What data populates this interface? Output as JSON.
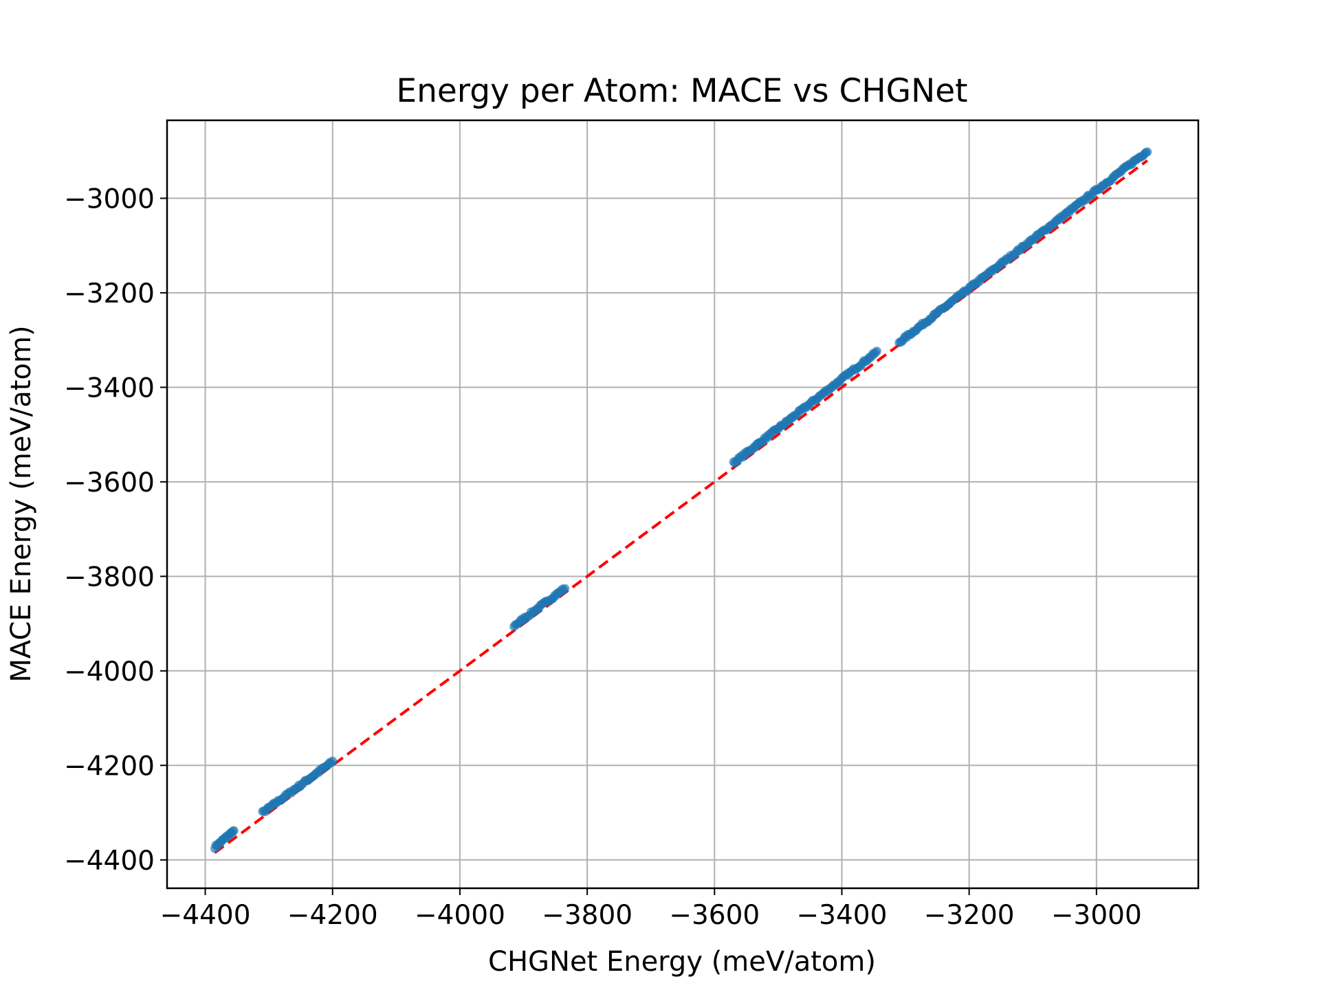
{
  "chart_data": {
    "type": "scatter",
    "title": "Energy per Atom: MACE vs CHGNet",
    "xlabel": "CHGNet Energy (meV/atom)",
    "ylabel": "MACE Energy (meV/atom)",
    "xlim": [
      -4460,
      -2840
    ],
    "ylim": [
      -4460,
      -2835
    ],
    "xticks": [
      -4400,
      -4200,
      -4000,
      -3800,
      -3600,
      -3400,
      -3200,
      -3000
    ],
    "yticks": [
      -4400,
      -4200,
      -4000,
      -3800,
      -3600,
      -3400,
      -3200,
      -3000
    ],
    "xtick_labels": [
      "−4400",
      "−4200",
      "−4000",
      "−3800",
      "−3600",
      "−3400",
      "−3200",
      "−3000"
    ],
    "ytick_labels": [
      "−4400",
      "−4200",
      "−4000",
      "−3800",
      "−3600",
      "−3400",
      "−3200",
      "−3000"
    ],
    "grid": true,
    "colors": {
      "points": "#1f77b4",
      "reference_line": "#ff0000",
      "grid": "#b0b0b0"
    },
    "reference_line": {
      "x": [
        -4385,
        -2920
      ],
      "y": [
        -4385,
        -2920
      ]
    },
    "clusters": [
      {
        "x_range": [
          -4385,
          -4355
        ],
        "y_range": [
          -4373,
          -4338
        ]
      },
      {
        "x_range": [
          -4310,
          -4200
        ],
        "y_range": [
          -4300,
          -4192
        ]
      },
      {
        "x_range": [
          -3915,
          -3835
        ],
        "y_range": [
          -3905,
          -3825
        ]
      },
      {
        "x_range": [
          -3570,
          -3345
        ],
        "y_range": [
          -3560,
          -3325
        ]
      },
      {
        "x_range": [
          -3310,
          -2920
        ],
        "y_range": [
          -3305,
          -2900
        ]
      }
    ]
  }
}
